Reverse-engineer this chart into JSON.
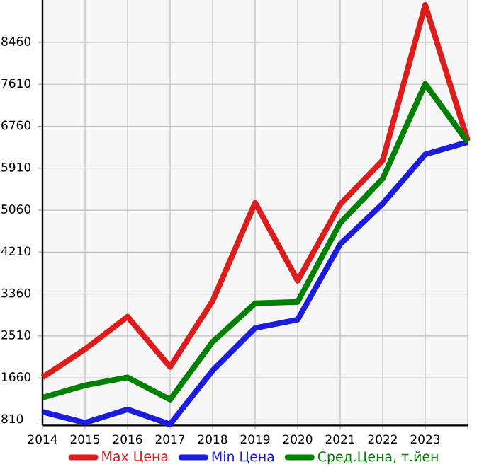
{
  "chart_data": {
    "type": "line",
    "x": [
      2014,
      2015,
      2016,
      2017,
      2018,
      2019,
      2020,
      2021,
      2022,
      2023,
      2024
    ],
    "series": [
      {
        "name": "Max Цена",
        "color": "#dd1c1c",
        "values": [
          1670,
          2240,
          2900,
          1880,
          3220,
          5210,
          3630,
          5180,
          6070,
          9220,
          6470
        ]
      },
      {
        "name": "Min Цена",
        "color": "#1c1cdd",
        "values": [
          970,
          750,
          1020,
          720,
          1810,
          2670,
          2840,
          4370,
          5190,
          6190,
          6440
        ]
      },
      {
        "name": "Сред.Цена, т.йен",
        "color": "#008000",
        "values": [
          1260,
          1510,
          1670,
          1220,
          2390,
          3170,
          3200,
          4800,
          5700,
          7620,
          6440
        ]
      }
    ],
    "xlim": [
      2014,
      2024
    ],
    "xticks": [
      2014,
      2015,
      2016,
      2017,
      2018,
      2019,
      2020,
      2021,
      2022,
      2023,
      {
        "value": 2024,
        "label": null
      }
    ],
    "ylim": [
      695,
      9320
    ],
    "yticks": [
      810,
      1660,
      2510,
      3360,
      4210,
      5060,
      5910,
      6760,
      7610,
      8460
    ],
    "grid": true,
    "legend": "bottom",
    "marker": "none",
    "line_style": "solid"
  }
}
